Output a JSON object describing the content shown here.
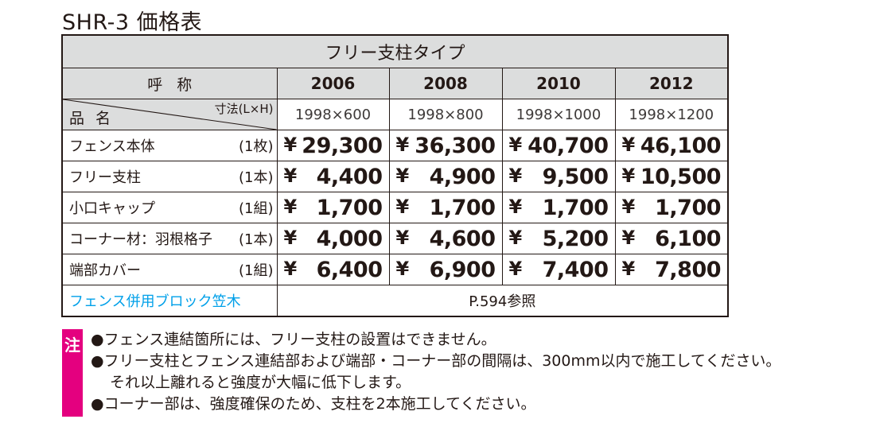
{
  "title": "SHR-3 価格表",
  "table": {
    "type_header": "フリー支柱タイプ",
    "yobi_label": "呼称",
    "hinmei_label": "品名",
    "sunpo_label": "寸法(L×H)",
    "codes": [
      "2006",
      "2008",
      "2010",
      "2012"
    ],
    "dims": [
      "1998×600",
      "1998×800",
      "1998×1000",
      "1998×1200"
    ],
    "yen": "¥",
    "rows": [
      {
        "name": "フェンス本体",
        "unit": "(1枚)",
        "prices": [
          "29,300",
          "36,300",
          "40,700",
          "46,100"
        ]
      },
      {
        "name": "フリー支柱",
        "unit": "(1本)",
        "prices": [
          "4,400",
          "4,900",
          "9,500",
          "10,500"
        ]
      },
      {
        "name": "小口キャップ",
        "unit": "(1組)",
        "prices": [
          "1,700",
          "1,700",
          "1,700",
          "1,700"
        ]
      },
      {
        "name": "コーナー材：羽根格子",
        "unit": "(1本)",
        "prices": [
          "4,000",
          "4,600",
          "5,200",
          "6,100"
        ]
      },
      {
        "name": "端部カバー",
        "unit": "(1組)",
        "prices": [
          "6,400",
          "6,900",
          "7,400",
          "7,800"
        ]
      }
    ],
    "accessory_label": "フェンス併用ブロック笠木",
    "accessory_ref": "P.594参照"
  },
  "notes": {
    "badge": "注",
    "lines": [
      "●フェンス連結箇所には、フリー支柱の設置はできません。",
      "●フリー支柱とフェンス連結部および端部・コーナー部の間隔は、300mm以内で施工してください。",
      "それ以上離れると強度が大幅に低下します。",
      "●コーナー部は、強度確保のため、支柱を2本施工してください。"
    ]
  },
  "colors": {
    "header_gray": "#dcdddd",
    "accent_cyan": "#00a0e9",
    "note_magenta": "#e4007f"
  }
}
